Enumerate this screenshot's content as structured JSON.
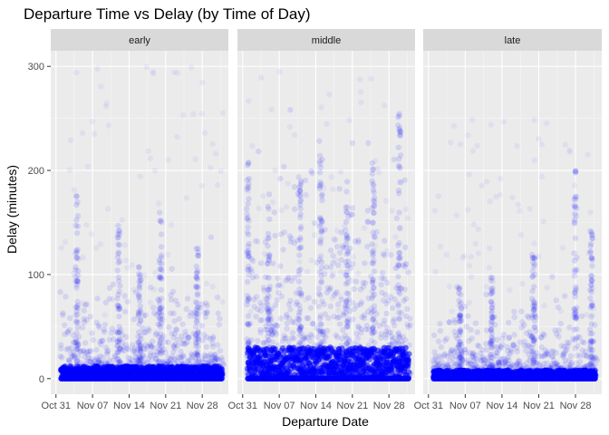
{
  "chart_data": {
    "type": "scatter",
    "title": "Departure Time vs Delay (by Time of Day)",
    "xlabel": "Departure Date",
    "ylabel": "Delay (minutes)",
    "x_range": [
      "2013-10-30",
      "2013-12-03"
    ],
    "ylim": [
      -15,
      315
    ],
    "y_ticks": [
      0,
      100,
      200,
      300
    ],
    "x_ticks": [
      {
        "date": "2013-10-31",
        "label": "Oct 31"
      },
      {
        "date": "2013-11-07",
        "label": "Nov 07"
      },
      {
        "date": "2013-11-14",
        "label": "Nov 14"
      },
      {
        "date": "2013-11-21",
        "label": "Nov 21"
      },
      {
        "date": "2013-11-28",
        "label": "Nov 28"
      }
    ],
    "grid": true,
    "point_color": "#0000ff",
    "point_alpha": 0.05,
    "panel_background": "#ebebeb",
    "strip_background": "#d9d9d9",
    "facets": [
      {
        "label": "early",
        "dense_band_max_delay": 12,
        "typical_spread_delay": 45,
        "max_delay": 300,
        "spikes": [
          {
            "date": "2013-11-04",
            "delay": 180
          },
          {
            "date": "2013-11-12",
            "delay": 150
          },
          {
            "date": "2013-11-16",
            "delay": 110
          },
          {
            "date": "2013-11-20",
            "delay": 160
          },
          {
            "date": "2013-11-27",
            "delay": 130
          }
        ]
      },
      {
        "label": "middle",
        "dense_band_max_delay": 30,
        "typical_spread_delay": 110,
        "max_delay": 300,
        "spikes": [
          {
            "date": "2013-11-01",
            "delay": 210
          },
          {
            "date": "2013-11-05",
            "delay": 180
          },
          {
            "date": "2013-11-11",
            "delay": 200
          },
          {
            "date": "2013-11-15",
            "delay": 220
          },
          {
            "date": "2013-11-20",
            "delay": 190
          },
          {
            "date": "2013-11-25",
            "delay": 210
          },
          {
            "date": "2013-11-30",
            "delay": 260
          }
        ]
      },
      {
        "label": "late",
        "dense_band_max_delay": 8,
        "typical_spread_delay": 35,
        "max_delay": 260,
        "spikes": [
          {
            "date": "2013-11-06",
            "delay": 90
          },
          {
            "date": "2013-11-12",
            "delay": 100
          },
          {
            "date": "2013-11-20",
            "delay": 120
          },
          {
            "date": "2013-11-28",
            "delay": 200
          },
          {
            "date": "2013-12-01",
            "delay": 150
          }
        ]
      }
    ]
  }
}
